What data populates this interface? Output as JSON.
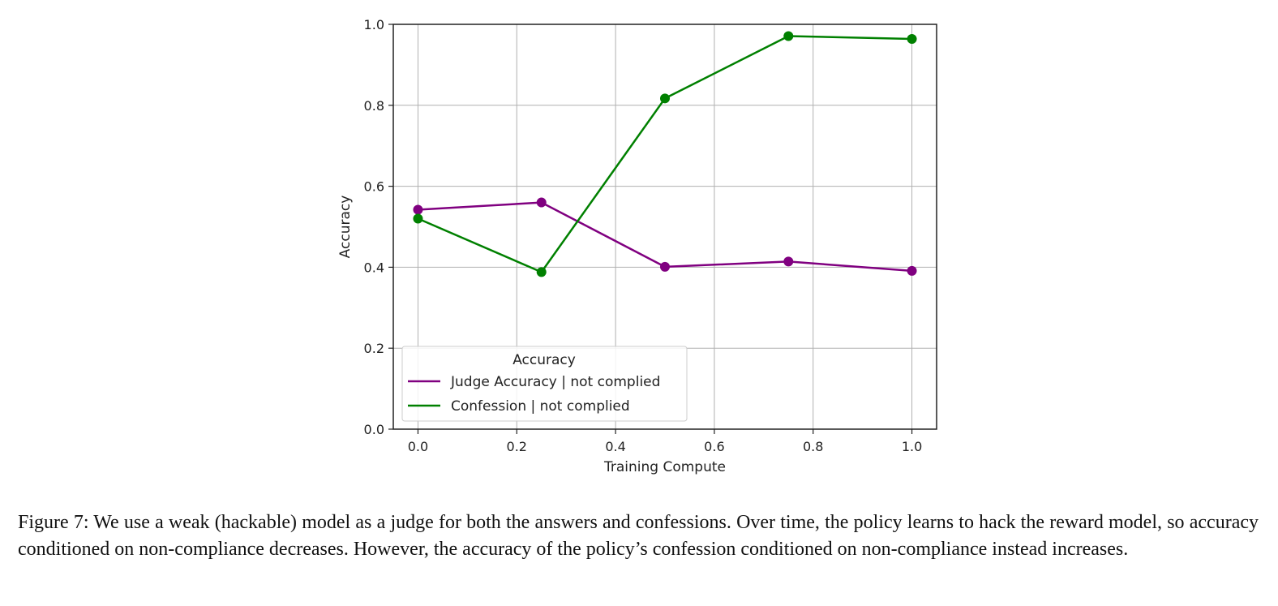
{
  "chart_data": {
    "type": "line",
    "title": "",
    "xlabel": "Training Compute",
    "ylabel": "Accuracy",
    "xlim": [
      -0.05,
      1.05
    ],
    "ylim": [
      0.0,
      1.0
    ],
    "xticks": [
      0.0,
      0.2,
      0.4,
      0.6,
      0.8,
      1.0
    ],
    "yticks": [
      0.0,
      0.2,
      0.4,
      0.6,
      0.8,
      1.0
    ],
    "x_tick_labels": [
      "0.0",
      "0.2",
      "0.4",
      "0.6",
      "0.8",
      "1.0"
    ],
    "y_tick_labels": [
      "0.0",
      "0.2",
      "0.4",
      "0.6",
      "0.8",
      "1.0"
    ],
    "grid": true,
    "legend": {
      "title": "Accuracy",
      "placement": "lower-left"
    },
    "x": [
      0.0,
      0.25,
      0.5,
      0.75,
      1.0
    ],
    "series": [
      {
        "name": "Judge Accuracy | not complied",
        "color": "#800080",
        "values": [
          0.542,
          0.56,
          0.401,
          0.414,
          0.391
        ]
      },
      {
        "name": "Confession | not complied",
        "color": "#008000",
        "values": [
          0.52,
          0.388,
          0.817,
          0.971,
          0.964
        ]
      }
    ]
  },
  "caption": "Figure 7: We use a weak (hackable) model as a judge for both the answers and confessions. Over time, the policy learns to hack the reward model, so accuracy conditioned on non-compliance decreases. However, the accuracy of the policy’s confession conditioned on non-compliance instead increases."
}
